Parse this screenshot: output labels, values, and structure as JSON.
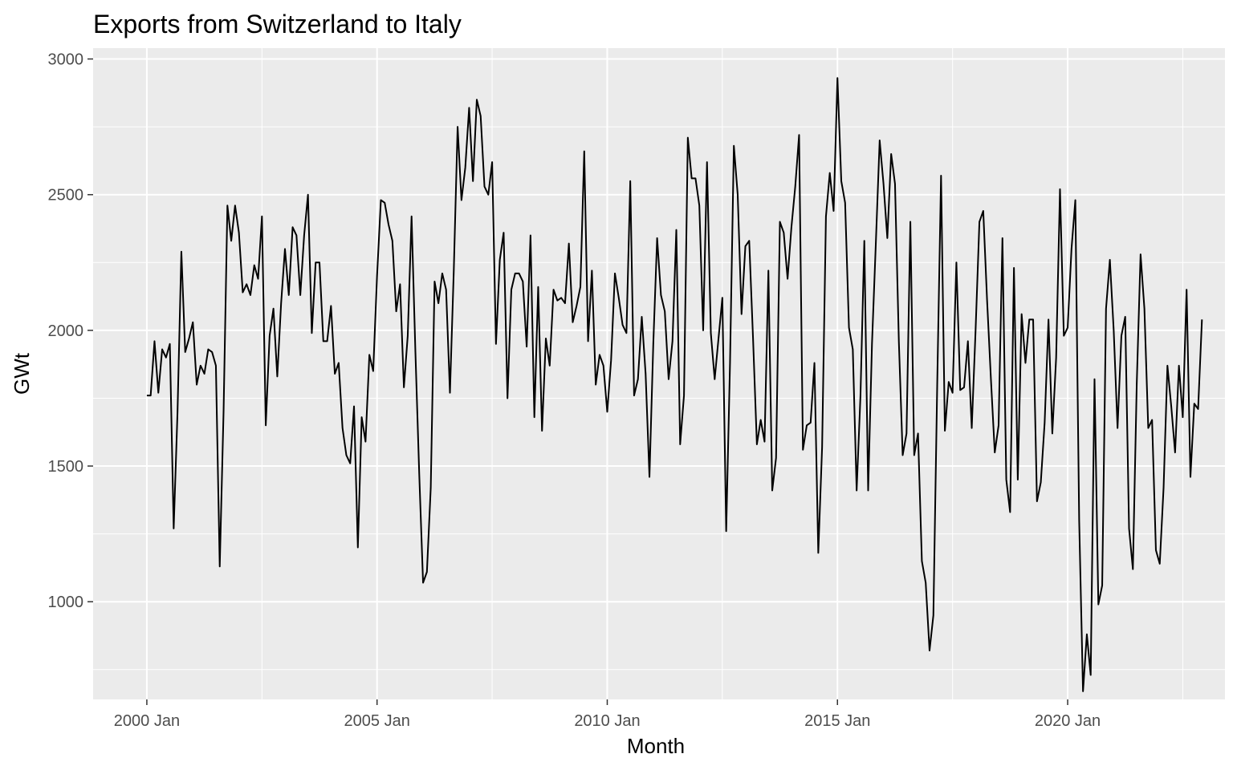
{
  "chart_data": {
    "type": "line",
    "title": "Exports from Switzerland to Italy",
    "xlabel": "Month",
    "ylabel": "GWt",
    "x_start": "2000 Jan",
    "x_frequency": "monthly",
    "xlim": [
      "1998 Nov",
      "2023 Jun"
    ],
    "ylim": [
      640,
      3040
    ],
    "x_ticks": [
      "2000 Jan",
      "2005 Jan",
      "2010 Jan",
      "2015 Jan",
      "2020 Jan"
    ],
    "y_ticks": [
      1000,
      1500,
      2000,
      2500,
      3000
    ],
    "grid": true,
    "legend": "none",
    "colors": {
      "panel": "#ebebeb",
      "grid": "#ffffff",
      "line": "#000000"
    },
    "series": [
      {
        "values": [
          1760,
          1760,
          1960,
          1770,
          1930,
          1900,
          1950,
          1270,
          1700,
          2290,
          1920,
          1970,
          2030,
          1800,
          1870,
          1840,
          1930,
          1920,
          1870,
          1130,
          1700,
          2460,
          2330,
          2460,
          2360,
          2140,
          2170,
          2130,
          2240,
          2190,
          2420,
          1650,
          1980,
          2080,
          1830,
          2100,
          2300,
          2130,
          2380,
          2350,
          2130,
          2350,
          2500,
          1990,
          2250,
          2250,
          1960,
          1960,
          2090,
          1840,
          1880,
          1640,
          1540,
          1510,
          1720,
          1200,
          1680,
          1590,
          1910,
          1850,
          2200,
          2480,
          2470,
          2390,
          2330,
          2070,
          2170,
          1790,
          1980,
          2420,
          1920,
          1470,
          1070,
          1110,
          1420,
          2180,
          2100,
          2210,
          2150,
          1770,
          2220,
          2750,
          2480,
          2600,
          2820,
          2550,
          2850,
          2790,
          2530,
          2500,
          2620,
          1950,
          2260,
          2360,
          1750,
          2150,
          2210,
          2210,
          2180,
          1940,
          2350,
          1680,
          2160,
          1630,
          1970,
          1870,
          2150,
          2110,
          2120,
          2100,
          2320,
          2030,
          2090,
          2160,
          2660,
          1960,
          2220,
          1800,
          1910,
          1870,
          1700,
          1890,
          2210,
          2120,
          2020,
          1990,
          2550,
          1760,
          1820,
          2050,
          1840,
          1460,
          1950,
          2340,
          2130,
          2070,
          1820,
          1960,
          2370,
          1580,
          1760,
          2710,
          2560,
          2560,
          2460,
          2000,
          2620,
          1990,
          1820,
          1970,
          2120,
          1260,
          1880,
          2680,
          2500,
          2060,
          2310,
          2330,
          1970,
          1580,
          1670,
          1590,
          2220,
          1410,
          1530,
          2400,
          2360,
          2190,
          2380,
          2530,
          2720,
          1560,
          1650,
          1660,
          1880,
          1180,
          1570,
          2420,
          2580,
          2440,
          2930,
          2550,
          2470,
          2010,
          1930,
          1410,
          1760,
          2330,
          1410,
          1950,
          2320,
          2700,
          2540,
          2340,
          2650,
          2540,
          1960,
          1540,
          1620,
          2400,
          1540,
          1620,
          1150,
          1070,
          820,
          950,
          1800,
          2570,
          1630,
          1810,
          1770,
          2250,
          1780,
          1790,
          1960,
          1640,
          2000,
          2400,
          2440,
          2110,
          1820,
          1550,
          1650,
          2340,
          1450,
          1330,
          2230,
          1450,
          2060,
          1880,
          2040,
          2040,
          1370,
          1440,
          1660,
          2040,
          1620,
          1900,
          2520,
          1980,
          2010,
          2300,
          2480,
          1300,
          670,
          880,
          730,
          1820,
          990,
          1060,
          2080,
          2260,
          2000,
          1640,
          1980,
          2050,
          1270,
          1120,
          1800,
          2280,
          2080,
          1640,
          1670,
          1190,
          1140,
          1420,
          1870,
          1720,
          1550,
          1870,
          1680,
          2150,
          1460,
          1730,
          1710,
          2040
        ]
      }
    ]
  }
}
